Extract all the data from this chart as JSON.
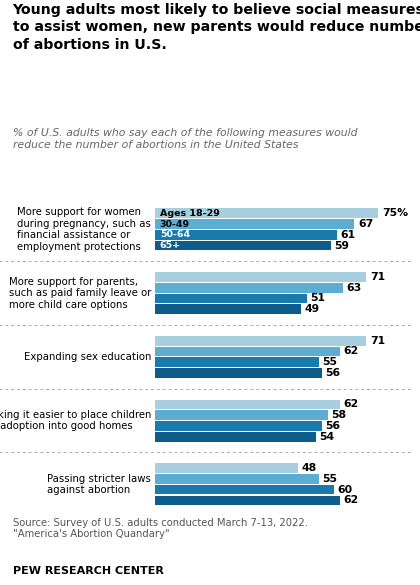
{
  "title": "Young adults most likely to believe social measures\nto assist women, new parents would reduce number\nof abortions in U.S.",
  "subtitle": "% of U.S. adults who say each of the following measures would\nreduce the number of abortions in the United States",
  "categories": [
    "More support for women\nduring pregnancy, such as\nfinancial assistance or\nemployment protections",
    "More support for parents,\nsuch as paid family leave or\nmore child care options",
    "Expanding sex education",
    "Making it easier to place children\nfor adoption into good homes",
    "Passing stricter laws\nagainst abortion"
  ],
  "age_groups": [
    "Ages 18-29",
    "30-49",
    "50-64",
    "65+"
  ],
  "colors": [
    "#a8cfe0",
    "#5badd4",
    "#1a7aab",
    "#0d5c8c"
  ],
  "values": [
    [
      75,
      67,
      61,
      59
    ],
    [
      71,
      63,
      51,
      49
    ],
    [
      71,
      62,
      55,
      56
    ],
    [
      62,
      58,
      56,
      54
    ],
    [
      48,
      55,
      60,
      62
    ]
  ],
  "source_line1": "Source: Survey of U.S. adults conducted March 7-13, 2022.",
  "source_line2": "\"America's Abortion Quandary\"",
  "footer": "PEW RESEARCH CENTER",
  "background_color": "#ffffff"
}
